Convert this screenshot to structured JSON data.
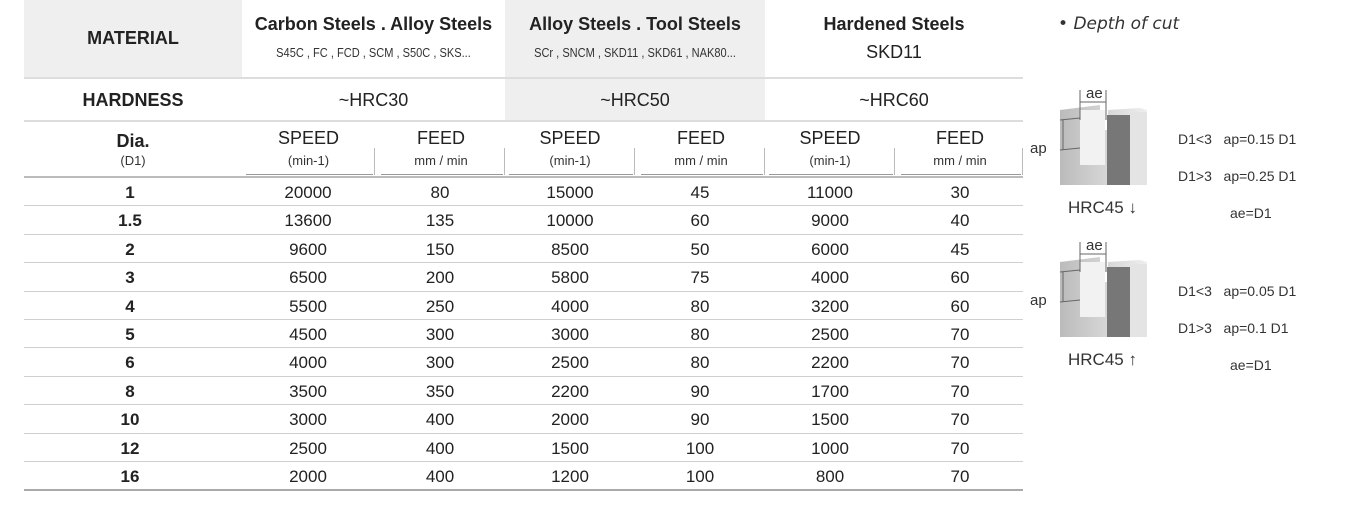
{
  "header": {
    "material_label": "MATERIAL",
    "hardness_label": "HARDNESS",
    "dia_label": "Dia.",
    "dia_sub": "(D1)",
    "groups": [
      {
        "name": "Carbon Steels . Alloy Steels",
        "examples": "S45C , FC , FCD , SCM , S50C , SKS...",
        "hardness": "~HRC30"
      },
      {
        "name": "Alloy  Steels . Tool Steels",
        "examples": "SCr , SNCM , SKD11 , SKD61 , NAK80...",
        "hardness": "~HRC50"
      },
      {
        "name": "Hardened Steels",
        "examples": "SKD11",
        "hardness": "~HRC60"
      }
    ],
    "speed_label": "SPEED",
    "speed_unit": "(min-1)",
    "feed_label": "FEED",
    "feed_unit": "mm / min"
  },
  "rows": [
    [
      "1",
      "20000",
      "80",
      "15000",
      "45",
      "11000",
      "30"
    ],
    [
      "1.5",
      "13600",
      "135",
      "10000",
      "60",
      "9000",
      "40"
    ],
    [
      "2",
      "9600",
      "150",
      "8500",
      "50",
      "6000",
      "45"
    ],
    [
      "3",
      "6500",
      "200",
      "5800",
      "75",
      "4000",
      "60"
    ],
    [
      "4",
      "5500",
      "250",
      "4000",
      "80",
      "3200",
      "60"
    ],
    [
      "5",
      "4500",
      "300",
      "3000",
      "80",
      "2500",
      "70"
    ],
    [
      "6",
      "4000",
      "300",
      "2500",
      "80",
      "2200",
      "70"
    ],
    [
      "8",
      "3500",
      "350",
      "2200",
      "90",
      "1700",
      "70"
    ],
    [
      "10",
      "3000",
      "400",
      "2000",
      "90",
      "1500",
      "70"
    ],
    [
      "12",
      "2500",
      "400",
      "1500",
      "100",
      "1000",
      "70"
    ],
    [
      "16",
      "2000",
      "400",
      "1200",
      "100",
      "800",
      "70"
    ]
  ],
  "depth": {
    "title": "Depth of cut",
    "diagrams": [
      {
        "ae": "ae",
        "ap": "ap",
        "label": "HRC45 ↓",
        "lines": [
          "D1<3   ap=0.15 D1",
          "D1>3   ap=0.25 D1",
          "ae=D1"
        ]
      },
      {
        "ae": "ae",
        "ap": "ap",
        "label": "HRC45 ↑",
        "lines": [
          "D1<3   ap=0.05 D1",
          "D1>3   ap=0.1 D1",
          "ae=D1"
        ]
      }
    ]
  }
}
